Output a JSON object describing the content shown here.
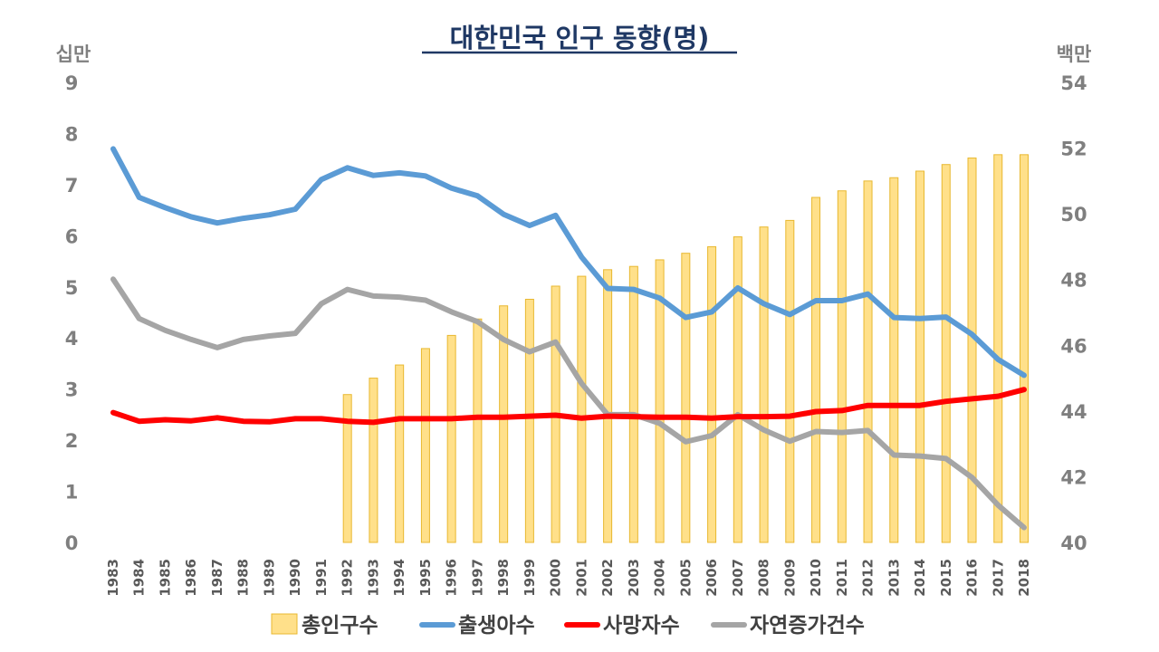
{
  "chart_data": {
    "type": "bar+line",
    "title": "대한민국 인구 동향(명)",
    "y_left_label": "십만",
    "y_right_label": "백만",
    "y_left_range": [
      0,
      9
    ],
    "y_right_range": [
      40,
      54
    ],
    "y_left_ticks": [
      "0",
      "1",
      "2",
      "3",
      "4",
      "5",
      "6",
      "7",
      "8",
      "9"
    ],
    "y_right_ticks": [
      "40",
      "42",
      "44",
      "46",
      "48",
      "50",
      "52",
      "54"
    ],
    "categories": [
      "1983",
      "1984",
      "1985",
      "1986",
      "1987",
      "1988",
      "1989",
      "1990",
      "1991",
      "1992",
      "1993",
      "1994",
      "1995",
      "1996",
      "1997",
      "1998",
      "1999",
      "2000",
      "2001",
      "2002",
      "2003",
      "2004",
      "2005",
      "2006",
      "2007",
      "2008",
      "2009",
      "2010",
      "2011",
      "2012",
      "2013",
      "2014",
      "2015",
      "2016",
      "2017",
      "2018"
    ],
    "grid": false,
    "legend_position": "bottom",
    "colors": {
      "bar_fill": "#ffe08a",
      "bar_stroke": "#e8b830",
      "births": "#5b9bd5",
      "deaths": "#ff0000",
      "natural_increase": "#a5a5a5",
      "title": "#1f3864"
    },
    "series": [
      {
        "name": "총인구수",
        "type": "bar",
        "axis": "right",
        "values": [
          null,
          null,
          null,
          null,
          null,
          null,
          null,
          null,
          null,
          44.5,
          45.0,
          45.4,
          45.9,
          46.3,
          46.8,
          47.2,
          47.4,
          47.8,
          48.1,
          48.3,
          48.4,
          48.6,
          48.8,
          49.0,
          49.3,
          49.6,
          49.8,
          50.5,
          50.7,
          51.0,
          51.1,
          51.3,
          51.5,
          51.7,
          51.8,
          51.8
        ]
      },
      {
        "name": "출생아수",
        "type": "line",
        "axis": "left",
        "values": [
          7.7,
          6.75,
          6.55,
          6.37,
          6.25,
          6.34,
          6.41,
          6.52,
          7.1,
          7.33,
          7.18,
          7.23,
          7.17,
          6.93,
          6.78,
          6.42,
          6.2,
          6.4,
          5.58,
          4.97,
          4.95,
          4.78,
          4.4,
          4.51,
          4.98,
          4.67,
          4.46,
          4.73,
          4.73,
          4.86,
          4.4,
          4.38,
          4.41,
          4.07,
          3.58,
          3.27
        ]
      },
      {
        "name": "사망자수",
        "type": "line",
        "axis": "left",
        "values": [
          2.54,
          2.37,
          2.4,
          2.38,
          2.44,
          2.37,
          2.36,
          2.42,
          2.42,
          2.37,
          2.35,
          2.42,
          2.42,
          2.42,
          2.45,
          2.45,
          2.47,
          2.49,
          2.43,
          2.47,
          2.46,
          2.45,
          2.45,
          2.43,
          2.46,
          2.46,
          2.47,
          2.56,
          2.58,
          2.68,
          2.68,
          2.68,
          2.76,
          2.81,
          2.86,
          2.99
        ]
      },
      {
        "name": "자연증가건수",
        "type": "line",
        "axis": "left",
        "values": [
          5.15,
          4.38,
          4.15,
          3.97,
          3.81,
          3.97,
          4.04,
          4.09,
          4.67,
          4.95,
          4.82,
          4.8,
          4.74,
          4.51,
          4.32,
          3.97,
          3.73,
          3.92,
          3.11,
          2.5,
          2.5,
          2.33,
          1.97,
          2.09,
          2.5,
          2.2,
          1.98,
          2.17,
          2.15,
          2.19,
          1.71,
          1.69,
          1.64,
          1.27,
          0.73,
          0.29
        ]
      }
    ]
  }
}
